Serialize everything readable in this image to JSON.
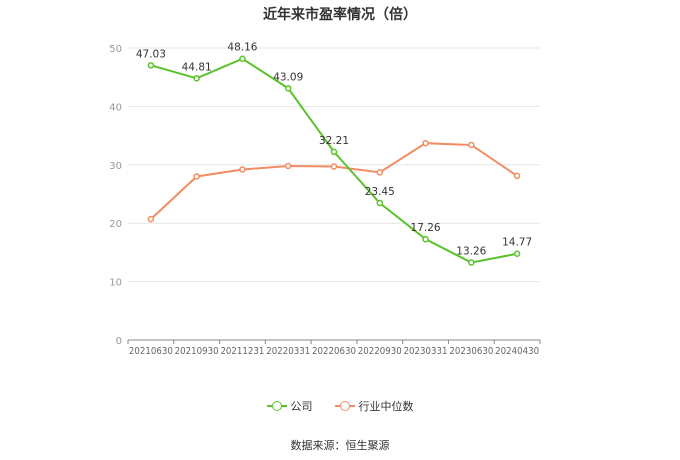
{
  "colors": {
    "company": "#5bc22b",
    "industry": "#f28c62",
    "grid": "#e6e6e6",
    "axis": "#999999",
    "text": "#333333"
  },
  "chart_data": {
    "type": "line",
    "title": "近年来市盈率情况（倍）",
    "categories": [
      "20210630",
      "20210930",
      "20211231",
      "20220331",
      "20220630",
      "20220930",
      "20230331",
      "20230630",
      "20240430"
    ],
    "ylim": [
      0,
      50
    ],
    "yticks": [
      0,
      10,
      20,
      30,
      40,
      50
    ],
    "grid": true,
    "legend_position": "bottom",
    "series": [
      {
        "name": "公司",
        "color": "#5bc22b",
        "show_labels": true,
        "values": [
          47.03,
          44.81,
          48.16,
          43.09,
          32.21,
          23.45,
          17.26,
          13.26,
          14.77
        ],
        "labels": [
          "47.03",
          "44.81",
          "48.16",
          "43.09",
          "32.21",
          "23.45",
          "17.26",
          "13.26",
          "14.77"
        ]
      },
      {
        "name": "行业中位数",
        "color": "#f28c62",
        "show_labels": false,
        "values": [
          20.7,
          28.0,
          29.2,
          29.8,
          29.7,
          28.7,
          33.7,
          33.4,
          28.1
        ]
      }
    ]
  },
  "source": "数据来源：恒生聚源"
}
